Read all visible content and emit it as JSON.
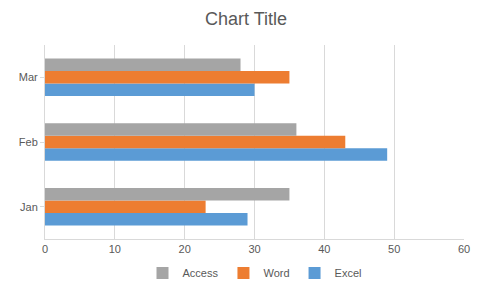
{
  "chart_data": {
    "type": "bar",
    "title": "Chart Title",
    "orientation": "horizontal",
    "categories": [
      "Jan",
      "Feb",
      "Mar"
    ],
    "series": [
      {
        "name": "Excel",
        "color": "#5b9bd5",
        "values": [
          29,
          49,
          30
        ]
      },
      {
        "name": "Word",
        "color": "#ed7d31",
        "values": [
          23,
          43,
          35
        ]
      },
      {
        "name": "Access",
        "color": "#a5a5a5",
        "values": [
          35,
          36,
          28
        ]
      }
    ],
    "xlim": [
      0,
      60
    ],
    "xticks": [
      0,
      10,
      20,
      30,
      40,
      50,
      60
    ],
    "grid": true,
    "legend": "bottom"
  }
}
